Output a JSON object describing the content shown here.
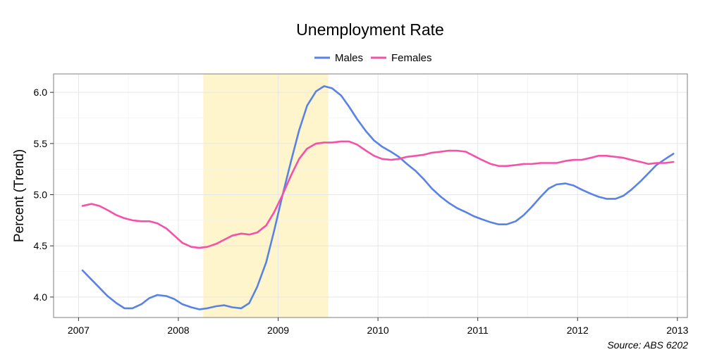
{
  "chart_data": {
    "type": "line",
    "title": "Unemployment Rate",
    "xlabel": "",
    "ylabel": "Percent (Trend)",
    "source": "Source: ABS 6202",
    "xlim": [
      2006.75,
      2013.1
    ],
    "ylim": [
      3.8,
      6.18
    ],
    "x_ticks": [
      2007,
      2008,
      2009,
      2010,
      2011,
      2012,
      2013
    ],
    "x_tick_labels": [
      "2007",
      "2008",
      "2009",
      "2010",
      "2011",
      "2012",
      "2013"
    ],
    "y_ticks": [
      4.0,
      4.5,
      5.0,
      5.5,
      6.0
    ],
    "y_tick_labels": [
      "4.0",
      "4.5",
      "5.0",
      "5.5",
      "6.0"
    ],
    "grid": true,
    "legend_position": "top",
    "shaded_region": {
      "x_start": 2008.25,
      "x_end": 2009.5,
      "color": "#fff5cc"
    },
    "series": [
      {
        "name": "Males",
        "color": "#5882e6",
        "points": [
          [
            2007.04,
            4.26
          ],
          [
            2007.13,
            4.17
          ],
          [
            2007.21,
            4.09
          ],
          [
            2007.29,
            4.01
          ],
          [
            2007.38,
            3.94
          ],
          [
            2007.46,
            3.89
          ],
          [
            2007.54,
            3.89
          ],
          [
            2007.63,
            3.93
          ],
          [
            2007.71,
            3.99
          ],
          [
            2007.79,
            4.02
          ],
          [
            2007.88,
            4.01
          ],
          [
            2007.96,
            3.98
          ],
          [
            2008.04,
            3.93
          ],
          [
            2008.13,
            3.9
          ],
          [
            2008.21,
            3.88
          ],
          [
            2008.29,
            3.89
          ],
          [
            2008.38,
            3.91
          ],
          [
            2008.46,
            3.92
          ],
          [
            2008.54,
            3.9
          ],
          [
            2008.63,
            3.89
          ],
          [
            2008.71,
            3.94
          ],
          [
            2008.79,
            4.1
          ],
          [
            2008.88,
            4.34
          ],
          [
            2008.96,
            4.65
          ],
          [
            2009.04,
            4.98
          ],
          [
            2009.13,
            5.33
          ],
          [
            2009.21,
            5.63
          ],
          [
            2009.29,
            5.87
          ],
          [
            2009.38,
            6.01
          ],
          [
            2009.46,
            6.06
          ],
          [
            2009.54,
            6.04
          ],
          [
            2009.63,
            5.97
          ],
          [
            2009.71,
            5.86
          ],
          [
            2009.79,
            5.74
          ],
          [
            2009.88,
            5.62
          ],
          [
            2009.96,
            5.53
          ],
          [
            2010.04,
            5.47
          ],
          [
            2010.13,
            5.42
          ],
          [
            2010.21,
            5.37
          ],
          [
            2010.29,
            5.3
          ],
          [
            2010.38,
            5.23
          ],
          [
            2010.46,
            5.15
          ],
          [
            2010.54,
            5.06
          ],
          [
            2010.63,
            4.98
          ],
          [
            2010.71,
            4.92
          ],
          [
            2010.79,
            4.87
          ],
          [
            2010.88,
            4.83
          ],
          [
            2010.96,
            4.79
          ],
          [
            2011.04,
            4.76
          ],
          [
            2011.13,
            4.73
          ],
          [
            2011.21,
            4.71
          ],
          [
            2011.29,
            4.71
          ],
          [
            2011.38,
            4.74
          ],
          [
            2011.46,
            4.8
          ],
          [
            2011.54,
            4.88
          ],
          [
            2011.63,
            4.98
          ],
          [
            2011.71,
            5.06
          ],
          [
            2011.79,
            5.1
          ],
          [
            2011.88,
            5.11
          ],
          [
            2011.96,
            5.09
          ],
          [
            2012.04,
            5.05
          ],
          [
            2012.13,
            5.01
          ],
          [
            2012.21,
            4.98
          ],
          [
            2012.29,
            4.96
          ],
          [
            2012.38,
            4.96
          ],
          [
            2012.46,
            4.99
          ],
          [
            2012.54,
            5.05
          ],
          [
            2012.63,
            5.13
          ],
          [
            2012.71,
            5.21
          ],
          [
            2012.79,
            5.29
          ],
          [
            2012.88,
            5.35
          ],
          [
            2012.96,
            5.4
          ]
        ]
      },
      {
        "name": "Females",
        "color": "#f551a8",
        "points": [
          [
            2007.04,
            4.89
          ],
          [
            2007.13,
            4.91
          ],
          [
            2007.21,
            4.89
          ],
          [
            2007.29,
            4.85
          ],
          [
            2007.38,
            4.8
          ],
          [
            2007.46,
            4.77
          ],
          [
            2007.54,
            4.75
          ],
          [
            2007.63,
            4.74
          ],
          [
            2007.71,
            4.74
          ],
          [
            2007.79,
            4.72
          ],
          [
            2007.88,
            4.67
          ],
          [
            2007.96,
            4.6
          ],
          [
            2008.04,
            4.53
          ],
          [
            2008.13,
            4.49
          ],
          [
            2008.21,
            4.48
          ],
          [
            2008.29,
            4.49
          ],
          [
            2008.38,
            4.52
          ],
          [
            2008.46,
            4.56
          ],
          [
            2008.54,
            4.6
          ],
          [
            2008.63,
            4.62
          ],
          [
            2008.71,
            4.61
          ],
          [
            2008.79,
            4.63
          ],
          [
            2008.88,
            4.7
          ],
          [
            2008.96,
            4.83
          ],
          [
            2009.04,
            4.99
          ],
          [
            2009.13,
            5.19
          ],
          [
            2009.21,
            5.35
          ],
          [
            2009.29,
            5.45
          ],
          [
            2009.38,
            5.5
          ],
          [
            2009.46,
            5.51
          ],
          [
            2009.54,
            5.51
          ],
          [
            2009.63,
            5.52
          ],
          [
            2009.71,
            5.52
          ],
          [
            2009.79,
            5.49
          ],
          [
            2009.88,
            5.43
          ],
          [
            2009.96,
            5.38
          ],
          [
            2010.04,
            5.35
          ],
          [
            2010.13,
            5.34
          ],
          [
            2010.21,
            5.35
          ],
          [
            2010.29,
            5.37
          ],
          [
            2010.38,
            5.38
          ],
          [
            2010.46,
            5.39
          ],
          [
            2010.54,
            5.41
          ],
          [
            2010.63,
            5.42
          ],
          [
            2010.71,
            5.43
          ],
          [
            2010.79,
            5.43
          ],
          [
            2010.88,
            5.42
          ],
          [
            2010.96,
            5.38
          ],
          [
            2011.04,
            5.34
          ],
          [
            2011.13,
            5.3
          ],
          [
            2011.21,
            5.28
          ],
          [
            2011.29,
            5.28
          ],
          [
            2011.38,
            5.29
          ],
          [
            2011.46,
            5.3
          ],
          [
            2011.54,
            5.3
          ],
          [
            2011.63,
            5.31
          ],
          [
            2011.71,
            5.31
          ],
          [
            2011.79,
            5.31
          ],
          [
            2011.88,
            5.33
          ],
          [
            2011.96,
            5.34
          ],
          [
            2012.04,
            5.34
          ],
          [
            2012.13,
            5.36
          ],
          [
            2012.21,
            5.38
          ],
          [
            2012.29,
            5.38
          ],
          [
            2012.38,
            5.37
          ],
          [
            2012.46,
            5.36
          ],
          [
            2012.54,
            5.34
          ],
          [
            2012.63,
            5.32
          ],
          [
            2012.71,
            5.3
          ],
          [
            2012.79,
            5.31
          ],
          [
            2012.88,
            5.31
          ],
          [
            2012.96,
            5.32
          ]
        ]
      }
    ]
  }
}
